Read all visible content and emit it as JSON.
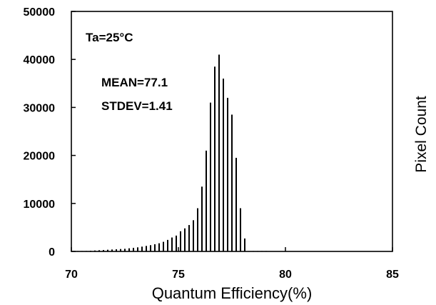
{
  "chart_data": {
    "type": "bar",
    "xlabel": "Quantum Efficiency(%)",
    "ylabel": "Pixel Count",
    "xlim": [
      70,
      85
    ],
    "ylim": [
      0,
      50000
    ],
    "x_ticks": [
      "70",
      "75",
      "80",
      "85"
    ],
    "y_ticks": [
      "0",
      "10000",
      "20000",
      "30000",
      "40000",
      "50000"
    ],
    "grid": false,
    "annotations": {
      "temperature": "Ta=25°C",
      "mean": "MEAN=77.1",
      "stdev": "STDEV=1.41"
    },
    "series": [
      {
        "x": [
          70.3,
          70.5,
          70.7,
          70.9,
          71.1,
          71.3,
          71.5,
          71.7,
          71.9,
          72.1,
          72.3,
          72.5,
          72.7,
          72.9,
          73.1,
          73.3,
          73.5,
          73.7,
          73.9,
          74.1,
          74.3,
          74.5,
          74.7,
          74.9,
          75.1,
          75.3,
          75.5,
          75.7,
          75.9,
          76.1,
          76.3,
          76.5,
          76.7,
          76.9,
          77.1,
          77.3,
          77.5,
          77.7,
          77.9,
          78.1,
          78.3,
          78.5,
          78.7,
          78.9,
          79.1,
          79.3
        ],
        "values": [
          50,
          80,
          100,
          150,
          200,
          250,
          300,
          350,
          400,
          450,
          500,
          550,
          650,
          750,
          850,
          1000,
          1150,
          1300,
          1500,
          1700,
          2000,
          2400,
          2900,
          3300,
          4200,
          4800,
          5500,
          6500,
          9000,
          13500,
          21000,
          31000,
          38500,
          41000,
          36000,
          32000,
          28500,
          19500,
          9000,
          2700,
          50,
          30,
          20,
          10,
          5,
          0
        ]
      }
    ]
  }
}
